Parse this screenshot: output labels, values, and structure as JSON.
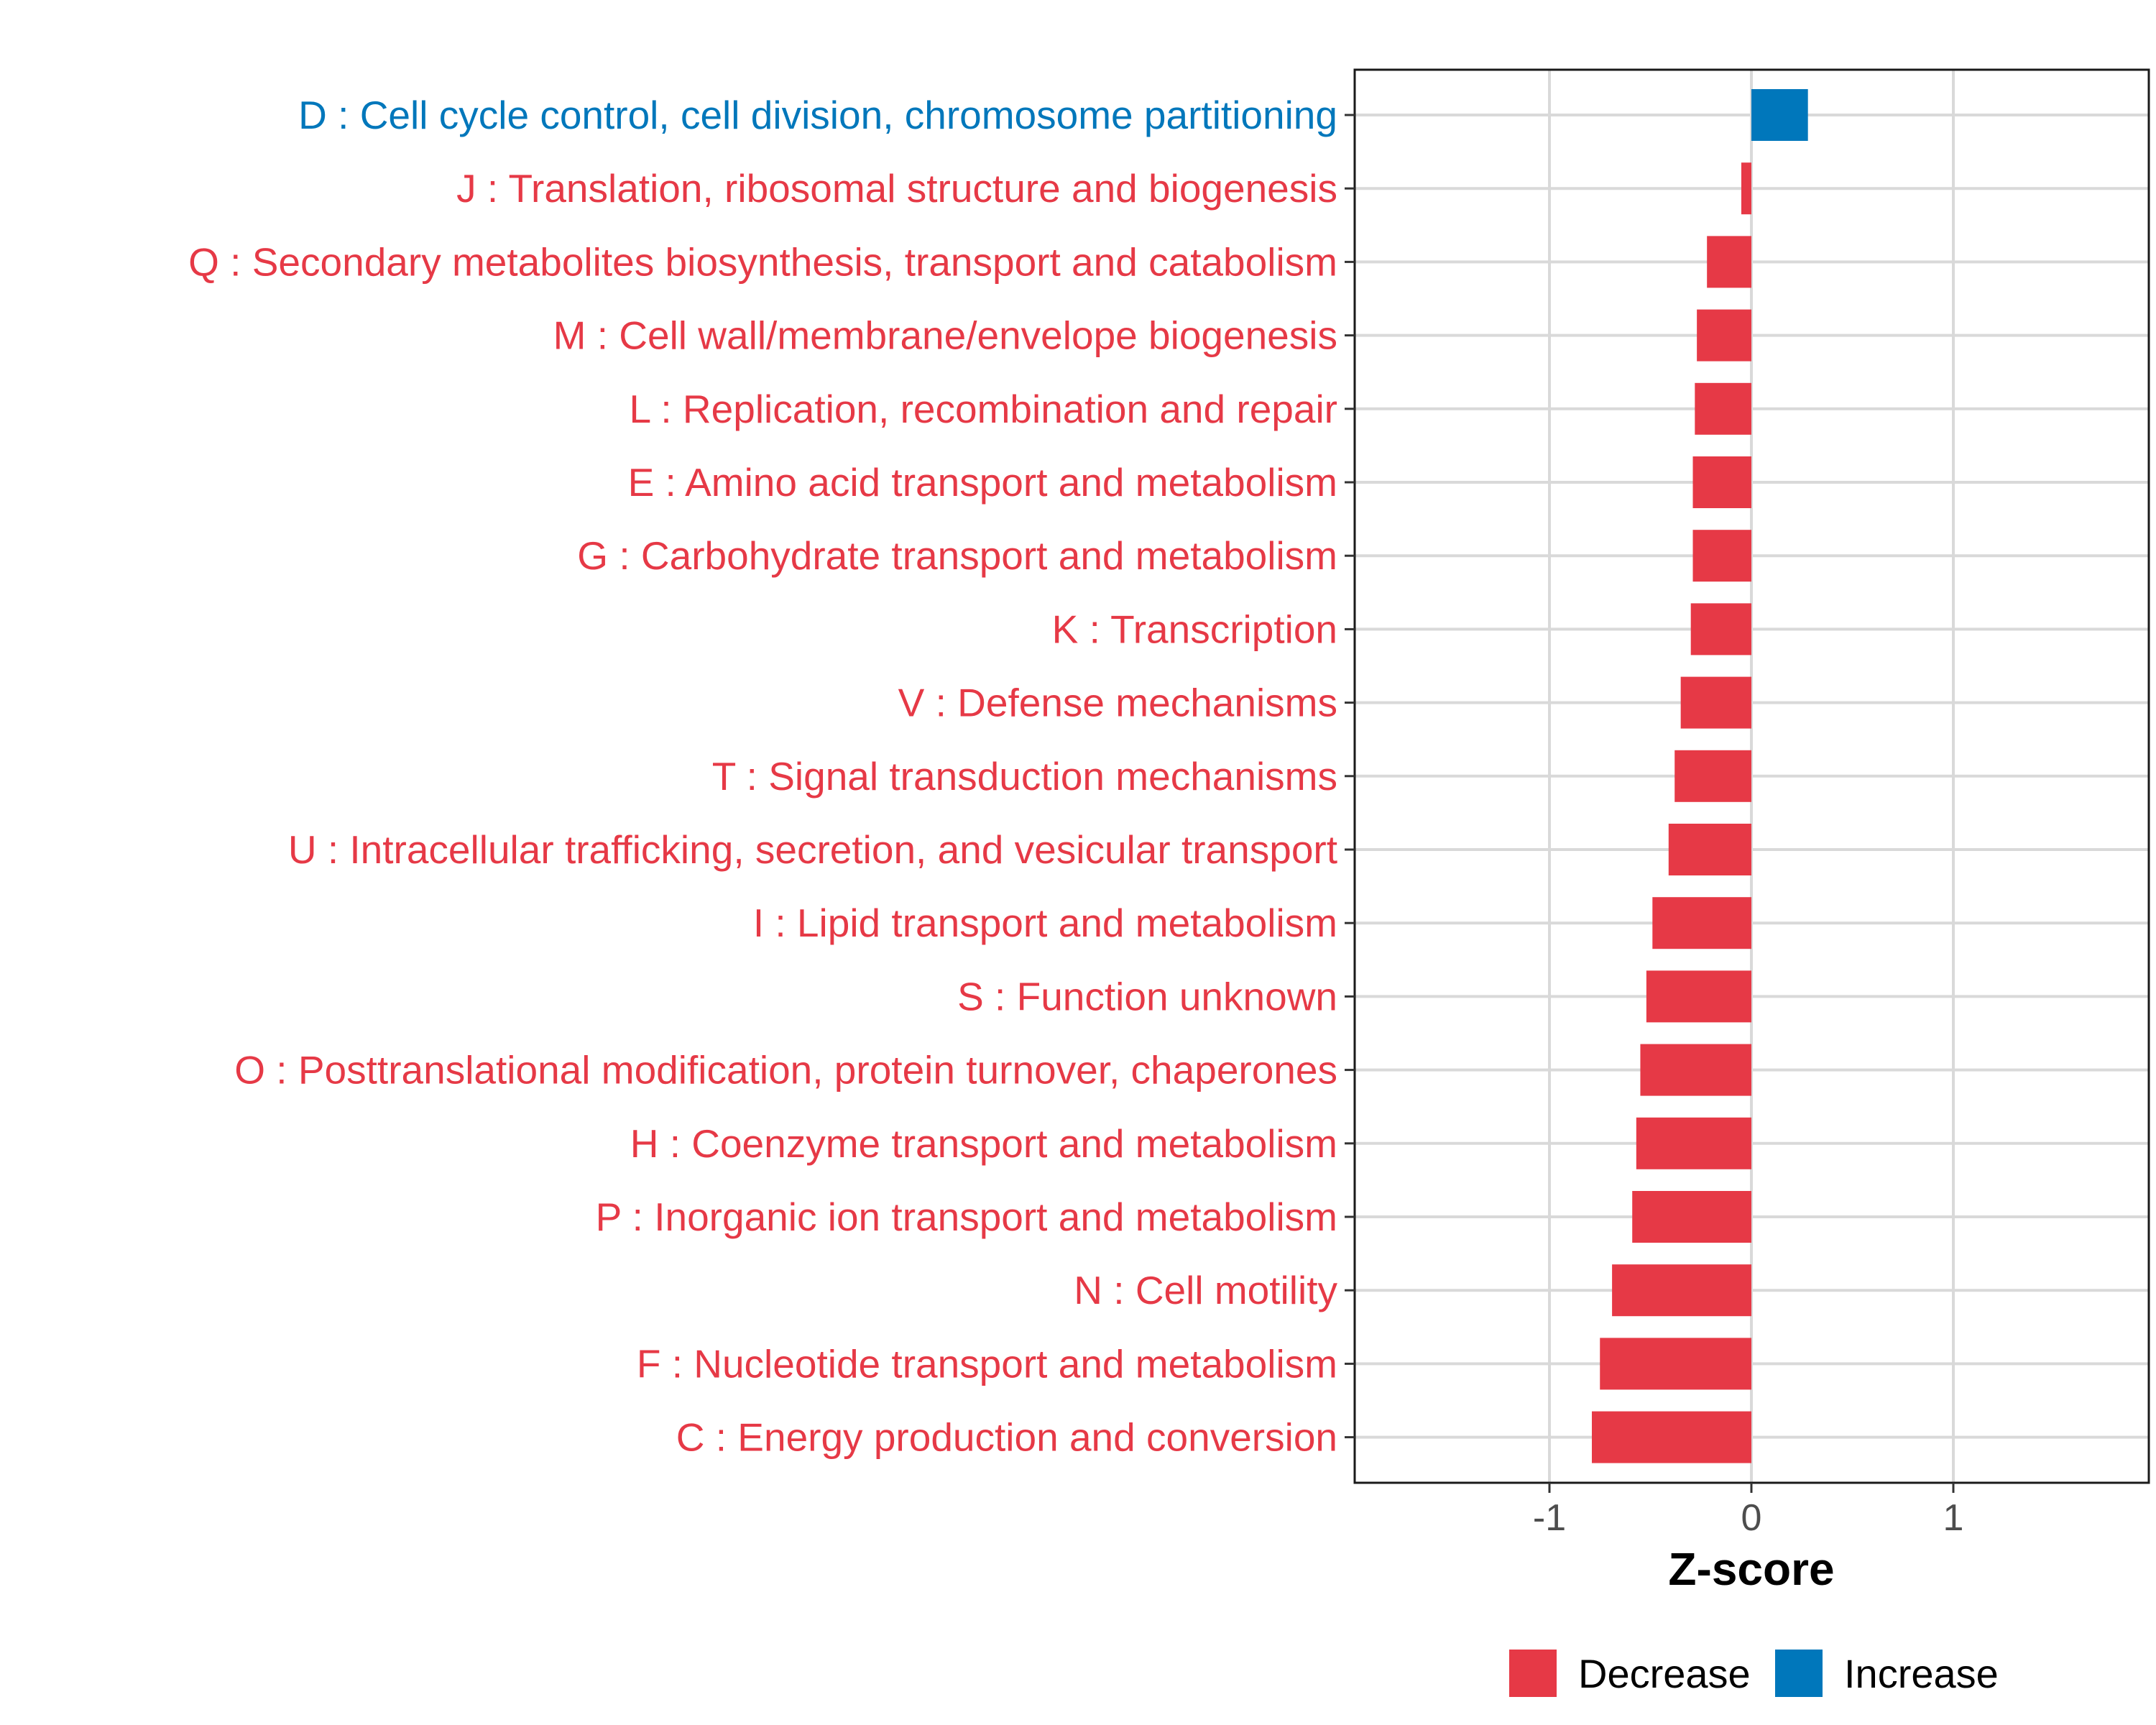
{
  "chart_data": {
    "type": "bar",
    "orientation": "horizontal",
    "xlabel": "Z-score",
    "ylabel": "",
    "xlim": [
      -1.96,
      1.96
    ],
    "xticks": [
      -1,
      0,
      1
    ],
    "xtick_labels": [
      "-1",
      "0",
      "1"
    ],
    "grid": true,
    "legend_position": "bottom",
    "legend": [
      {
        "name": "Decrease",
        "color": "#E63946"
      },
      {
        "name": "Increase",
        "color": "#0077BB"
      }
    ],
    "categories": [
      "D : Cell cycle control, cell division, chromosome partitioning",
      "J : Translation, ribosomal structure and biogenesis",
      "Q : Secondary metabolites biosynthesis, transport and catabolism",
      "M : Cell wall/membrane/envelope biogenesis",
      "L : Replication, recombination and repair",
      "E : Amino acid transport and metabolism",
      "G : Carbohydrate transport and metabolism",
      "K : Transcription",
      "V : Defense mechanisms",
      "T : Signal transduction mechanisms",
      "U : Intracellular trafficking, secretion, and vesicular transport",
      "I : Lipid transport and metabolism",
      "S : Function unknown",
      "O : Posttranslational modification, protein turnover, chaperones",
      "H : Coenzyme transport and metabolism",
      "P : Inorganic ion transport and metabolism",
      "N : Cell motility",
      "F : Nucleotide transport and metabolism",
      "C : Energy production and conversion"
    ],
    "values": [
      0.28,
      -0.05,
      -0.22,
      -0.27,
      -0.28,
      -0.29,
      -0.29,
      -0.3,
      -0.35,
      -0.38,
      -0.41,
      -0.49,
      -0.52,
      -0.55,
      -0.57,
      -0.59,
      -0.69,
      -0.75,
      -0.79
    ],
    "groups": [
      "Increase",
      "Decrease",
      "Decrease",
      "Decrease",
      "Decrease",
      "Decrease",
      "Decrease",
      "Decrease",
      "Decrease",
      "Decrease",
      "Decrease",
      "Decrease",
      "Decrease",
      "Decrease",
      "Decrease",
      "Decrease",
      "Decrease",
      "Decrease",
      "Decrease"
    ]
  }
}
